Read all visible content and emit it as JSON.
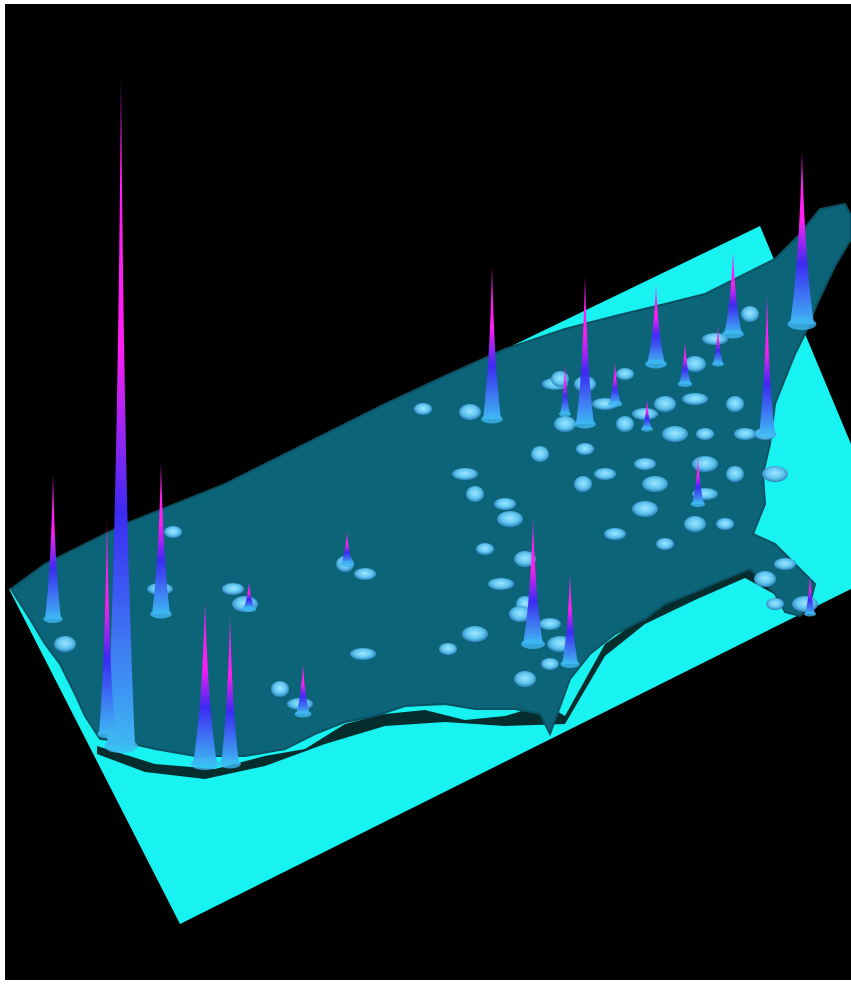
{
  "colors": {
    "background": "#000000",
    "frame": "#ffffff",
    "base_plane": "#18f2f0",
    "land": "#0b6478",
    "land_edge": "#0a5163",
    "coast_shadow": "#020a0c",
    "peak_low": "#3fb7f2",
    "peak_mid": "#3b2af2",
    "peak_high": "#ff1ef2",
    "blob": "#5fc6f0"
  },
  "scene": {
    "type": "3d-density-surface-over-map",
    "region": "united-states",
    "projection": "oblique-perspective",
    "peak_color_scale": "cyan-blue-magenta"
  }
}
